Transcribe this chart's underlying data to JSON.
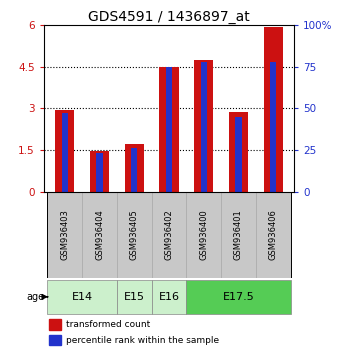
{
  "title": "GDS4591 / 1436897_at",
  "samples": [
    "GSM936403",
    "GSM936404",
    "GSM936405",
    "GSM936402",
    "GSM936400",
    "GSM936401",
    "GSM936406"
  ],
  "transformed_count": [
    2.95,
    1.48,
    1.72,
    4.48,
    4.72,
    2.85,
    5.92
  ],
  "percentile_rank": [
    47,
    23,
    26,
    75,
    78,
    45,
    78
  ],
  "age_group_spans": [
    2,
    1,
    1,
    3
  ],
  "age_group_labels": [
    "E14",
    "E15",
    "E16",
    "E17.5"
  ],
  "age_group_colors": [
    "#ccf0cc",
    "#ccf0cc",
    "#ccf0cc",
    "#55cc55"
  ],
  "ylim_left": [
    0,
    6
  ],
  "ylim_right": [
    0,
    100
  ],
  "yticks_left": [
    0,
    1.5,
    3.0,
    4.5,
    6
  ],
  "yticks_left_labels": [
    "0",
    "1.5",
    "3",
    "4.5",
    "6"
  ],
  "yticks_right": [
    0,
    25,
    50,
    75,
    100
  ],
  "yticks_right_labels": [
    "0",
    "25",
    "50",
    "75",
    "100%"
  ],
  "bar_color_red": "#cc1111",
  "bar_color_blue": "#2233cc",
  "bar_width": 0.55,
  "blue_bar_width": 0.18,
  "grid_color": "black",
  "legend_red_label": "transformed count",
  "legend_blue_label": "percentile rank within the sample",
  "age_label": "age",
  "bg_sample_color": "#c8c8c8",
  "title_fontsize": 10,
  "tick_fontsize": 7.5,
  "sample_fontsize": 6,
  "age_fontsize": 8
}
